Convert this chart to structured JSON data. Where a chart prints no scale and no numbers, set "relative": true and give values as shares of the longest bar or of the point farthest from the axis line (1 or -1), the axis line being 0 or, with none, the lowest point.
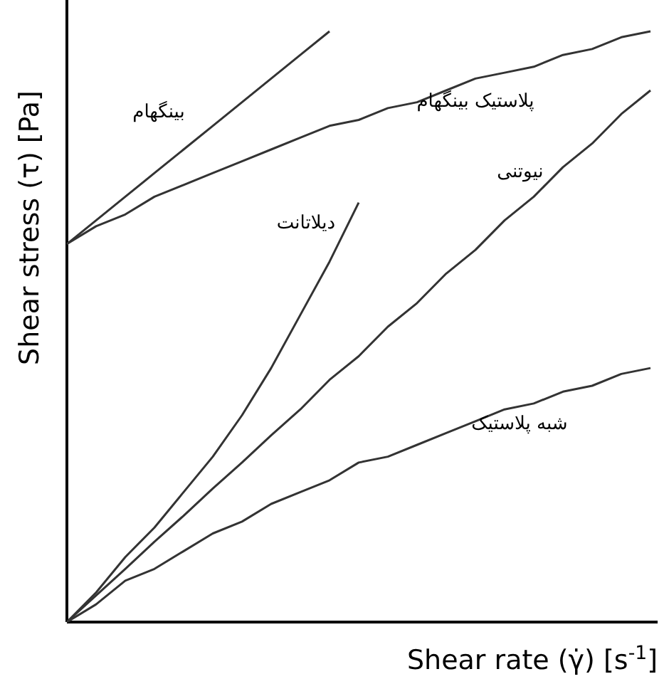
{
  "chart_data": {
    "type": "line",
    "relative": true,
    "xlabel": "Shear rate (γ̇) [s$^{-1}$]",
    "ylabel": "Shear stress (τ) [Pa]",
    "categories": [
      null,
      null,
      null,
      null,
      null,
      null,
      null,
      null,
      null,
      null,
      null,
      null,
      null,
      null,
      null,
      null,
      null,
      null,
      null,
      null,
      null
    ],
    "series": [
      {
        "name": "بینگهام",
        "color": "#333333",
        "values": [
          0.64,
          0.68,
          0.72,
          0.76,
          0.8,
          0.84,
          0.88,
          0.92,
          0.96,
          1.0,
          null,
          null,
          null,
          null,
          null,
          null,
          null,
          null,
          null,
          null,
          null
        ]
      },
      {
        "name": "پلاستیک بینگهام",
        "color": "#333333",
        "values": [
          0.64,
          0.67,
          0.69,
          0.72,
          0.74,
          0.76,
          0.78,
          0.8,
          0.82,
          0.84,
          0.85,
          0.87,
          0.88,
          0.9,
          0.92,
          0.93,
          0.94,
          0.96,
          0.97,
          0.99,
          1.0
        ]
      },
      {
        "name": "دیلاتانت",
        "color": "#333333",
        "values": [
          0,
          0.05,
          0.11,
          0.16,
          0.22,
          0.28,
          0.35,
          0.43,
          0.52,
          0.61,
          0.71,
          null,
          null,
          null,
          null,
          null,
          null,
          null,
          null,
          null,
          null
        ]
      },
      {
        "name": "نیوتنی",
        "color": "#333333",
        "values": [
          0,
          0.045,
          0.09,
          0.136,
          0.18,
          0.226,
          0.27,
          0.316,
          0.36,
          0.41,
          0.45,
          0.5,
          0.54,
          0.59,
          0.63,
          0.68,
          0.72,
          0.77,
          0.81,
          0.86,
          0.9
        ]
      },
      {
        "name": "شبه پلاستیک",
        "color": "#333333",
        "values": [
          0,
          0.03,
          0.07,
          0.09,
          0.12,
          0.15,
          0.17,
          0.2,
          0.22,
          0.24,
          0.27,
          0.28,
          0.3,
          0.32,
          0.34,
          0.36,
          0.37,
          0.39,
          0.4,
          0.42,
          0.43
        ]
      }
    ]
  }
}
